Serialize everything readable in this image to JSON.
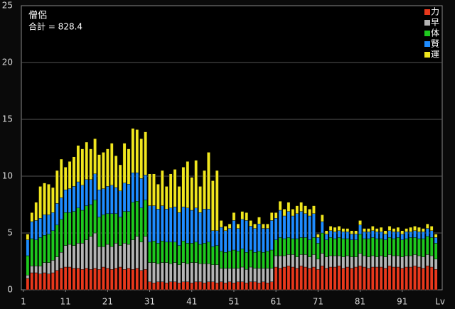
{
  "chart_data": {
    "type": "stacked_bar",
    "title": "僧侶",
    "subtitle": "合計 = 828.4",
    "x_label": "Lv",
    "x": [
      2,
      3,
      4,
      5,
      6,
      7,
      8,
      9,
      10,
      11,
      12,
      13,
      14,
      15,
      16,
      17,
      18,
      19,
      20,
      21,
      22,
      23,
      24,
      25,
      26,
      27,
      28,
      29,
      30,
      31,
      32,
      33,
      34,
      35,
      36,
      37,
      38,
      39,
      40,
      41,
      42,
      43,
      44,
      45,
      46,
      47,
      48,
      49,
      50,
      51,
      52,
      53,
      54,
      55,
      56,
      57,
      58,
      59,
      60,
      61,
      62,
      63,
      64,
      65,
      66,
      67,
      68,
      69,
      70,
      71,
      72,
      73,
      74,
      75,
      76,
      77,
      78,
      79,
      80,
      81,
      82,
      83,
      84,
      85,
      86,
      87,
      88,
      89,
      90,
      91,
      92,
      93,
      94,
      95,
      96,
      97,
      98,
      99
    ],
    "xlim": [
      0.5,
      100.5
    ],
    "xticks": [
      1,
      11,
      21,
      31,
      41,
      51,
      61,
      71,
      81,
      91
    ],
    "ylim": [
      0,
      25
    ],
    "yticks": [
      0,
      5,
      10,
      15,
      20,
      25
    ],
    "grid": true,
    "legend": "top-right",
    "series": [
      {
        "name": "力",
        "color": "#e8381c",
        "values": [
          1.0,
          1.5,
          1.5,
          1.4,
          1.5,
          1.4,
          1.5,
          1.7,
          1.9,
          2.0,
          2.0,
          1.9,
          1.9,
          1.8,
          1.9,
          1.8,
          1.9,
          1.8,
          2.0,
          1.9,
          1.8,
          1.9,
          2.0,
          1.8,
          1.9,
          1.8,
          1.9,
          1.7,
          1.8,
          0.7,
          0.6,
          0.7,
          0.7,
          0.6,
          0.7,
          0.7,
          0.6,
          0.7,
          0.7,
          0.6,
          0.7,
          0.7,
          0.6,
          0.7,
          0.7,
          0.6,
          0.7,
          0.6,
          0.7,
          0.6,
          0.7,
          0.7,
          0.6,
          0.7,
          0.7,
          0.6,
          0.7,
          0.6,
          0.7,
          2.0,
          1.9,
          2.0,
          2.1,
          2.0,
          1.9,
          2.1,
          2.0,
          1.9,
          2.0,
          1.8,
          2.1,
          1.9,
          2.0,
          2.0,
          2.1,
          1.9,
          2.0,
          1.9,
          2.0,
          2.1,
          2.0,
          1.9,
          2.0,
          2.0,
          2.0,
          1.9,
          2.1,
          2.0,
          2.0,
          1.9,
          2.0,
          2.0,
          2.1,
          2.0,
          1.9,
          2.1,
          2.0,
          1.8
        ]
      },
      {
        "name": "早",
        "color": "#b4b4b4",
        "values": [
          0.3,
          0.6,
          0.6,
          0.7,
          0.9,
          1.0,
          1.1,
          1.2,
          1.4,
          1.9,
          2.0,
          2.0,
          2.2,
          2.3,
          2.5,
          2.9,
          3.1,
          2.0,
          1.8,
          2.1,
          2.0,
          2.2,
          1.9,
          2.3,
          2.1,
          2.6,
          2.8,
          2.5,
          2.9,
          1.7,
          1.8,
          1.6,
          1.7,
          1.8,
          1.6,
          1.7,
          1.6,
          1.7,
          1.6,
          1.8,
          1.7,
          1.6,
          1.7,
          1.6,
          1.5,
          1.6,
          1.2,
          1.3,
          1.2,
          1.3,
          1.2,
          1.3,
          1.2,
          1.3,
          1.2,
          1.3,
          1.2,
          1.3,
          1.2,
          1.0,
          1.1,
          1.0,
          1.0,
          1.1,
          1.0,
          1.0,
          1.1,
          1.0,
          1.1,
          0.9,
          1.1,
          1.0,
          1.0,
          1.0,
          0.9,
          1.0,
          1.0,
          1.0,
          0.9,
          1.1,
          1.0,
          1.0,
          1.0,
          0.9,
          1.0,
          1.0,
          1.0,
          1.0,
          1.0,
          1.0,
          1.0,
          1.0,
          1.0,
          1.0,
          1.0,
          1.0,
          1.0,
          0.9
        ]
      },
      {
        "name": "体",
        "color": "#1ec81e",
        "values": [
          1.7,
          2.4,
          2.3,
          2.5,
          2.4,
          2.5,
          2.6,
          2.8,
          2.9,
          2.9,
          2.8,
          3.0,
          3.1,
          2.9,
          3.0,
          2.8,
          2.9,
          2.6,
          2.8,
          2.7,
          2.9,
          2.6,
          2.5,
          2.8,
          2.9,
          3.3,
          3.1,
          3.0,
          3.2,
          1.8,
          1.9,
          1.8,
          1.9,
          1.8,
          1.9,
          1.8,
          1.7,
          1.9,
          1.8,
          1.7,
          1.8,
          1.7,
          1.8,
          1.9,
          1.6,
          1.7,
          1.5,
          1.4,
          1.5,
          1.6,
          1.5,
          1.6,
          1.5,
          1.5,
          1.4,
          1.5,
          1.4,
          1.5,
          1.6,
          1.4,
          1.6,
          1.5,
          1.5,
          1.4,
          1.6,
          1.5,
          1.5,
          1.5,
          1.5,
          1.4,
          1.8,
          1.5,
          1.6,
          1.5,
          1.6,
          1.6,
          1.5,
          1.5,
          1.5,
          1.7,
          1.5,
          1.6,
          1.6,
          1.6,
          1.5,
          1.5,
          1.5,
          1.5,
          1.6,
          1.5,
          1.5,
          1.6,
          1.5,
          1.5,
          1.6,
          1.6,
          1.6,
          1.4
        ]
      },
      {
        "name": "賢",
        "color": "#1e8cff",
        "values": [
          1.4,
          1.5,
          1.7,
          1.7,
          1.8,
          1.7,
          1.6,
          1.9,
          1.9,
          2.0,
          2.1,
          2.2,
          2.3,
          2.2,
          2.3,
          2.2,
          2.3,
          2.4,
          2.3,
          2.4,
          2.5,
          2.3,
          2.3,
          2.5,
          2.4,
          2.6,
          2.5,
          2.6,
          2.2,
          3.2,
          3.1,
          3.0,
          3.1,
          2.9,
          3.0,
          3.1,
          2.9,
          3.0,
          3.1,
          2.9,
          3.0,
          2.8,
          3.0,
          2.9,
          1.4,
          1.3,
          2.1,
          1.9,
          2.0,
          2.6,
          2.0,
          2.6,
          2.8,
          2.1,
          2.1,
          2.4,
          2.1,
          2.0,
          2.6,
          1.9,
          2.4,
          2.0,
          2.3,
          2.0,
          2.2,
          2.3,
          2.1,
          2.1,
          2.1,
          0.5,
          1.0,
          0.5,
          0.6,
          0.6,
          0.6,
          0.6,
          0.6,
          0.5,
          0.5,
          0.8,
          0.6,
          0.6,
          0.6,
          0.6,
          0.6,
          0.5,
          0.6,
          0.6,
          0.5,
          0.5,
          0.6,
          0.5,
          0.6,
          0.6,
          0.6,
          0.7,
          0.6,
          0.5
        ]
      },
      {
        "name": "運",
        "color": "#f0e61e",
        "values": [
          0.5,
          0.8,
          1.6,
          2.8,
          2.8,
          2.7,
          2.2,
          2.9,
          3.4,
          2.0,
          2.4,
          2.6,
          3.2,
          3.2,
          3.3,
          2.7,
          3.1,
          3.1,
          3.2,
          3.3,
          3.7,
          2.8,
          2.3,
          3.5,
          3.1,
          3.9,
          3.8,
          3.5,
          3.8,
          2.8,
          2.8,
          2.2,
          3.1,
          2.0,
          3.0,
          3.3,
          2.3,
          3.5,
          4.1,
          2.9,
          4.2,
          2.3,
          3.4,
          5.0,
          4.4,
          5.3,
          0.6,
          0.4,
          0.4,
          0.7,
          0.4,
          0.7,
          0.7,
          0.5,
          0.4,
          0.6,
          0.4,
          0.4,
          0.7,
          0.5,
          0.8,
          0.6,
          0.8,
          0.6,
          0.7,
          0.8,
          0.7,
          0.6,
          0.7,
          0.3,
          0.6,
          0.3,
          0.4,
          0.4,
          0.4,
          0.3,
          0.3,
          0.3,
          0.3,
          0.4,
          0.3,
          0.3,
          0.4,
          0.3,
          0.4,
          0.3,
          0.4,
          0.3,
          0.4,
          0.3,
          0.3,
          0.4,
          0.4,
          0.4,
          0.3,
          0.4,
          0.4,
          0.3
        ]
      }
    ]
  }
}
